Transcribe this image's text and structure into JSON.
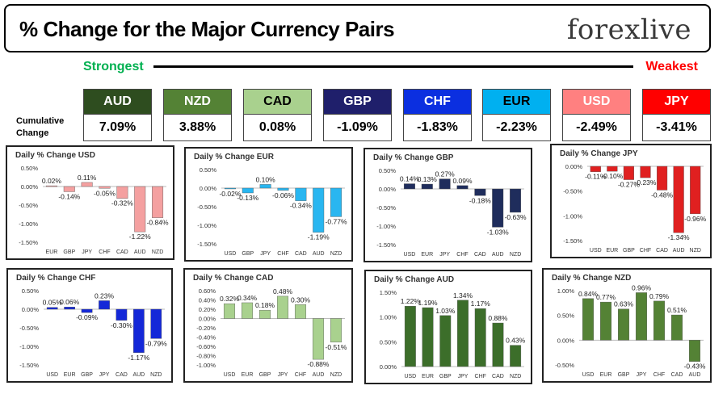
{
  "header": {
    "title": "% Change for the Major Currency Pairs",
    "logo": "forexlive"
  },
  "ranking": {
    "strongest_label": "Strongest",
    "weakest_label": "Weakest",
    "cumulative_label": "Cumulative Change",
    "currencies": [
      {
        "code": "AUD",
        "value": "7.09%",
        "color": "#2e4d1f",
        "text_color": "#ffffff"
      },
      {
        "code": "NZD",
        "value": "3.88%",
        "color": "#548235",
        "text_color": "#ffffff"
      },
      {
        "code": "CAD",
        "value": "0.08%",
        "color": "#a9d18e",
        "text_color": "#000000"
      },
      {
        "code": "GBP",
        "value": "-1.09%",
        "color": "#1f1f6b",
        "text_color": "#ffffff"
      },
      {
        "code": "CHF",
        "value": "-1.83%",
        "color": "#0b2fe0",
        "text_color": "#ffffff"
      },
      {
        "code": "EUR",
        "value": "-2.23%",
        "color": "#00b0f0",
        "text_color": "#000000"
      },
      {
        "code": "USD",
        "value": "-2.49%",
        "color": "#ff8080",
        "text_color": "#ffffff"
      },
      {
        "code": "JPY",
        "value": "-3.41%",
        "color": "#ff0000",
        "text_color": "#ffffff"
      }
    ]
  },
  "chart_data": [
    {
      "type": "bar",
      "title": "Daily % Change USD",
      "categories": [
        "EUR",
        "GBP",
        "JPY",
        "CHF",
        "CAD",
        "AUD",
        "NZD"
      ],
      "values": [
        0.02,
        -0.14,
        0.11,
        -0.05,
        -0.32,
        -1.22,
        -0.84
      ],
      "labels": [
        "0.02%",
        "-0.14%",
        "0.11%",
        "-0.05%",
        "-0.32%",
        "-1.22%",
        "-0.84%"
      ],
      "ylim": [
        -1.5,
        0.5
      ],
      "yticks": [
        "0.50%",
        "0.00%",
        "-0.50%",
        "-1.00%",
        "-1.50%"
      ],
      "color": "#f4a0a0"
    },
    {
      "type": "bar",
      "title": "Daily % Change EUR",
      "categories": [
        "USD",
        "GBP",
        "JPY",
        "CHF",
        "CAD",
        "AUD",
        "NZD"
      ],
      "values": [
        -0.02,
        -0.13,
        0.1,
        -0.06,
        -0.34,
        -1.19,
        -0.77
      ],
      "labels": [
        "-0.02%",
        "-0.13%",
        "0.10%",
        "-0.06%",
        "-0.34%",
        "-1.19%",
        "-0.77%"
      ],
      "ylim": [
        -1.5,
        0.5
      ],
      "yticks": [
        "0.50%",
        "0.00%",
        "-0.50%",
        "-1.00%",
        "-1.50%"
      ],
      "color": "#29b6f0"
    },
    {
      "type": "bar",
      "title": "Daily % Change GBP",
      "categories": [
        "USD",
        "EUR",
        "JPY",
        "CHF",
        "CAD",
        "AUD",
        "NZD"
      ],
      "values": [
        0.14,
        0.13,
        0.27,
        0.09,
        -0.18,
        -1.03,
        -0.63
      ],
      "labels": [
        "0.14%",
        "0.13%",
        "0.27%",
        "0.09%",
        "-0.18%",
        "-1.03%",
        "-0.63%"
      ],
      "ylim": [
        -1.5,
        0.5
      ],
      "yticks": [
        "0.50%",
        "0.00%",
        "-0.50%",
        "-1.00%",
        "-1.50%"
      ],
      "color": "#1f2d5c"
    },
    {
      "type": "bar",
      "title": "Daily % Change JPY",
      "categories": [
        "USD",
        "EUR",
        "GBP",
        "CHF",
        "CAD",
        "AUD",
        "NZD"
      ],
      "values": [
        -0.11,
        -0.1,
        -0.27,
        -0.23,
        -0.48,
        -1.34,
        -0.96
      ],
      "labels": [
        "-0.11%",
        "-0.10%",
        "-0.27%",
        "-0.23%",
        "-0.48%",
        "-1.34%",
        "-0.96%"
      ],
      "ylim": [
        -1.5,
        0.0
      ],
      "yticks": [
        "0.00%",
        "-0.50%",
        "-1.00%",
        "-1.50%"
      ],
      "color": "#e02020"
    },
    {
      "type": "bar",
      "title": "Daily % Change CHF",
      "categories": [
        "USD",
        "EUR",
        "GBP",
        "JPY",
        "CAD",
        "AUD",
        "NZD"
      ],
      "values": [
        0.05,
        0.06,
        -0.09,
        0.23,
        -0.3,
        -1.17,
        -0.79
      ],
      "labels": [
        "0.05%",
        "0.06%",
        "-0.09%",
        "0.23%",
        "-0.30%",
        "-1.17%",
        "-0.79%"
      ],
      "ylim": [
        -1.5,
        0.5
      ],
      "yticks": [
        "0.50%",
        "0.00%",
        "-0.50%",
        "-1.00%",
        "-1.50%"
      ],
      "color": "#1428d8"
    },
    {
      "type": "bar",
      "title": "Daily % Change CAD",
      "categories": [
        "USD",
        "EUR",
        "GBP",
        "JPY",
        "CHF",
        "AUD",
        "NZD"
      ],
      "values": [
        0.32,
        0.34,
        0.18,
        0.48,
        0.3,
        -0.88,
        -0.51
      ],
      "labels": [
        "0.32%",
        "0.34%",
        "0.18%",
        "0.48%",
        "0.30%",
        "-0.88%",
        "-0.51%"
      ],
      "ylim": [
        -1.0,
        0.6
      ],
      "yticks": [
        "0.60%",
        "0.40%",
        "0.20%",
        "0.00%",
        "-0.20%",
        "-0.40%",
        "-0.60%",
        "-0.80%",
        "-1.00%"
      ],
      "color": "#a9d18e"
    },
    {
      "type": "bar",
      "title": "Daily % Change AUD",
      "categories": [
        "USD",
        "EUR",
        "GBP",
        "JPY",
        "CHF",
        "CAD",
        "NZD"
      ],
      "values": [
        1.22,
        1.19,
        1.03,
        1.34,
        1.17,
        0.88,
        0.43
      ],
      "labels": [
        "1.22%",
        "1.19%",
        "1.03%",
        "1.34%",
        "1.17%",
        "0.88%",
        "0.43%"
      ],
      "ylim": [
        0.0,
        1.5
      ],
      "yticks": [
        "1.50%",
        "1.00%",
        "0.50%",
        "0.00%"
      ],
      "color": "#3c6e2a"
    },
    {
      "type": "bar",
      "title": "Daily % Change NZD",
      "categories": [
        "USD",
        "EUR",
        "GBP",
        "JPY",
        "CHF",
        "CAD",
        "AUD"
      ],
      "values": [
        0.84,
        0.77,
        0.63,
        0.96,
        0.79,
        0.51,
        -0.43
      ],
      "labels": [
        "0.84%",
        "0.77%",
        "0.63%",
        "0.96%",
        "0.79%",
        "0.51%",
        "-0.43%"
      ],
      "ylim": [
        -0.5,
        1.0
      ],
      "yticks": [
        "1.00%",
        "0.50%",
        "0.00%",
        "-0.50%"
      ],
      "color": "#548235"
    }
  ]
}
